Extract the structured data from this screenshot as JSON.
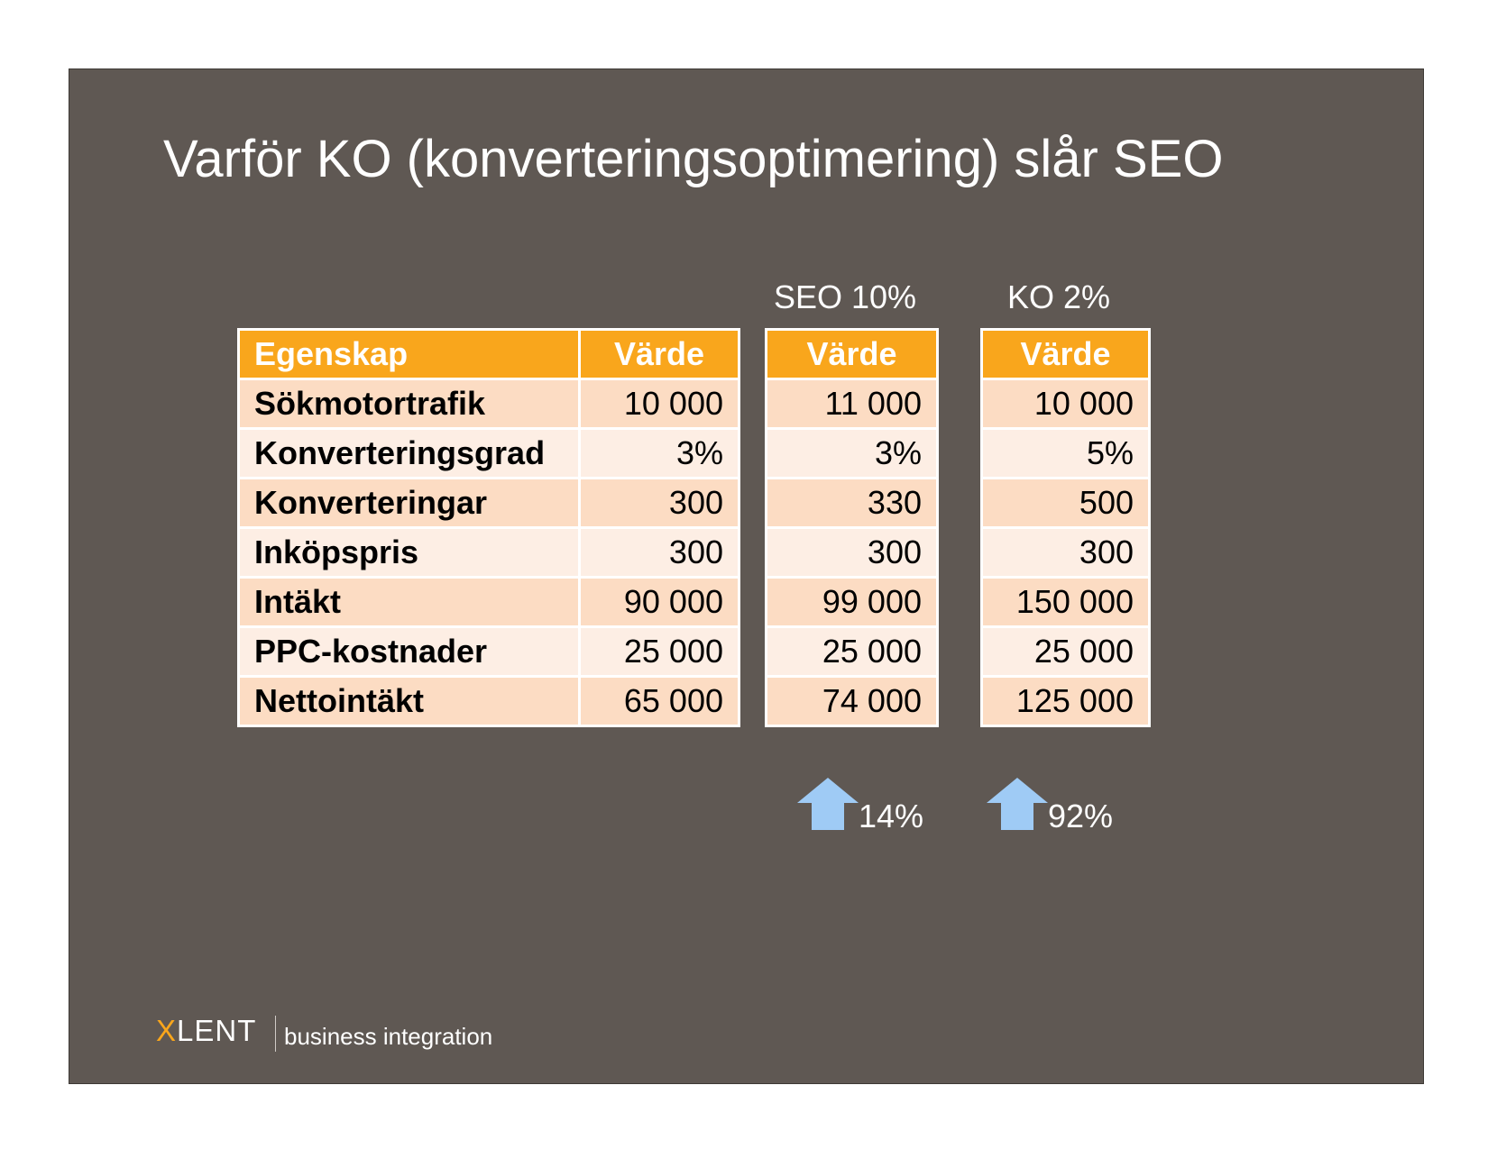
{
  "slide": {
    "title": "Varför KO (konverteringsoptimering) slår SEO"
  },
  "column_headers": {
    "seo": "SEO 10%",
    "ko": "KO 2%"
  },
  "tables": {
    "base": {
      "headers": [
        "Egenskap",
        "Värde"
      ],
      "rows": [
        {
          "label": "Sökmotortrafik",
          "value": "10 000"
        },
        {
          "label": "Konverteringsgrad",
          "value": "3%"
        },
        {
          "label": "Konverteringar",
          "value": "300"
        },
        {
          "label": "Inköpspris",
          "value": "300"
        },
        {
          "label": "Intäkt",
          "value": "90 000"
        },
        {
          "label": "PPC-kostnader",
          "value": "25 000"
        },
        {
          "label": "Nettointäkt",
          "value": "65 000"
        }
      ]
    },
    "seo": {
      "header": "Värde",
      "values": [
        "11 000",
        "3%",
        "330",
        "300",
        "99 000",
        "25 000",
        "74 000"
      ]
    },
    "ko": {
      "header": "Värde",
      "values": [
        "10 000",
        "5%",
        "500",
        "300",
        "150 000",
        "25 000",
        "125 000"
      ]
    }
  },
  "increases": {
    "seo": "14%",
    "ko": "92%"
  },
  "logo": {
    "x_letter": "X",
    "mark_rest": "LENT",
    "subtitle": "business integration"
  },
  "colors": {
    "slide_background": "#5f5853",
    "header_orange": "#f9a61c",
    "row_dark": "#fcdcc3",
    "row_light": "#fdeee4",
    "arrow_blue": "#9fcbf5"
  },
  "icons": {
    "increase_arrow": "up-arrow-icon"
  }
}
